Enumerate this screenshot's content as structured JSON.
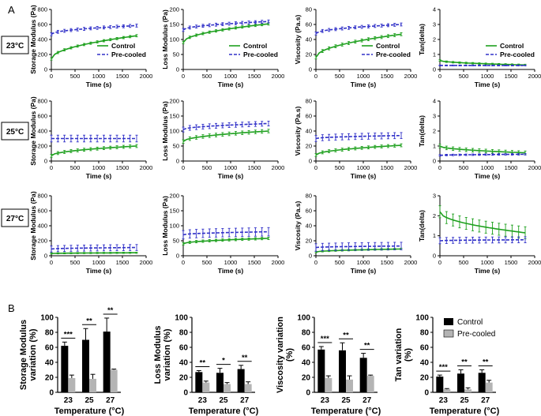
{
  "panel_labels": [
    "A",
    "B"
  ],
  "temperature_labels": [
    "23°C",
    "25°C",
    "27°C"
  ],
  "legend": {
    "control": "Control",
    "precooled": "Pre-cooled"
  },
  "colors": {
    "control": "#1ea01e",
    "precooled": "#3030c8",
    "bar_control": "#000000",
    "bar_precooled": "#b4b4b4"
  },
  "chart_data": [
    {
      "type": "line",
      "name": "storage-23",
      "row": 0,
      "col": 0,
      "ylabel": "Storage Modulus (Pa)",
      "xlabel": "Time (s)",
      "xlim": [
        0,
        2000
      ],
      "ylim": [
        0,
        800
      ],
      "xticks": [
        0,
        500,
        1000,
        1500,
        2000
      ],
      "yticks": [
        0,
        200,
        400,
        600,
        800
      ],
      "legend": true,
      "series": [
        {
          "name": "Control",
          "start": 140,
          "end": 450,
          "err": 15
        },
        {
          "name": "Pre-cooled",
          "start": 470,
          "end": 585,
          "err": 20
        }
      ]
    },
    {
      "type": "line",
      "name": "loss-23",
      "row": 0,
      "col": 1,
      "ylabel": "Loss Modulus (Pa)",
      "xlabel": "Time (s)",
      "xlim": [
        0,
        2000
      ],
      "ylim": [
        0,
        200
      ],
      "xticks": [
        0,
        500,
        1000,
        1500,
        2000
      ],
      "yticks": [
        0,
        50,
        100,
        150,
        200
      ],
      "legend": true,
      "series": [
        {
          "name": "Control",
          "start": 90,
          "end": 152,
          "err": 4
        },
        {
          "name": "Pre-cooled",
          "start": 132,
          "end": 160,
          "err": 5
        }
      ]
    },
    {
      "type": "line",
      "name": "viscosity-23",
      "row": 0,
      "col": 2,
      "ylabel": "Viscosity (Pa.s)",
      "xlabel": "Time (s)",
      "xlim": [
        0,
        2000
      ],
      "ylim": [
        0,
        80
      ],
      "xticks": [
        0,
        500,
        1000,
        1500,
        2000
      ],
      "yticks": [
        0,
        20,
        40,
        60,
        80
      ],
      "legend": true,
      "series": [
        {
          "name": "Control",
          "start": 16,
          "end": 47,
          "err": 2
        },
        {
          "name": "Pre-cooled",
          "start": 48,
          "end": 60,
          "err": 2
        }
      ]
    },
    {
      "type": "line",
      "name": "tan-23",
      "row": 0,
      "col": 3,
      "ylabel": "Tan(delta)",
      "xlabel": "Time (s)",
      "xlim": [
        0,
        2000
      ],
      "ylim": [
        0,
        4
      ],
      "xticks": [
        0,
        500,
        1000,
        1500,
        2000
      ],
      "yticks": [
        0,
        1,
        2,
        3,
        4
      ],
      "legend": true,
      "series": [
        {
          "name": "Control",
          "start": 0.6,
          "end": 0.3,
          "err": 0.05
        },
        {
          "name": "Pre-cooled",
          "start": 0.27,
          "end": 0.27,
          "err": 0.03
        }
      ]
    },
    {
      "type": "line",
      "name": "storage-25",
      "row": 1,
      "col": 0,
      "ylabel": "Storage Modulus (Pa)",
      "xlabel": "Time (s)",
      "xlim": [
        0,
        2000
      ],
      "ylim": [
        0,
        800
      ],
      "xticks": [
        0,
        500,
        1000,
        1500,
        2000
      ],
      "yticks": [
        0,
        200,
        400,
        600,
        800
      ],
      "legend": false,
      "series": [
        {
          "name": "Control",
          "start": 70,
          "end": 200,
          "err": 20
        },
        {
          "name": "Pre-cooled",
          "start": 300,
          "end": 300,
          "err": 45
        }
      ]
    },
    {
      "type": "line",
      "name": "loss-25",
      "row": 1,
      "col": 1,
      "ylabel": "Loss Modulus (Pa)",
      "xlabel": "Time (s)",
      "xlim": [
        0,
        2000
      ],
      "ylim": [
        0,
        200
      ],
      "xticks": [
        0,
        500,
        1000,
        1500,
        2000
      ],
      "yticks": [
        0,
        50,
        100,
        150,
        200
      ],
      "legend": false,
      "series": [
        {
          "name": "Control",
          "start": 65,
          "end": 100,
          "err": 6
        },
        {
          "name": "Pre-cooled",
          "start": 105,
          "end": 125,
          "err": 8
        }
      ]
    },
    {
      "type": "line",
      "name": "viscosity-25",
      "row": 1,
      "col": 2,
      "ylabel": "Viscosity (Pa.s)",
      "xlabel": "Time (s)",
      "xlim": [
        0,
        2000
      ],
      "ylim": [
        0,
        80
      ],
      "xticks": [
        0,
        500,
        1000,
        1500,
        2000
      ],
      "yticks": [
        0,
        20,
        40,
        60,
        80
      ],
      "legend": false,
      "series": [
        {
          "name": "Control",
          "start": 8,
          "end": 21,
          "err": 2
        },
        {
          "name": "Pre-cooled",
          "start": 30,
          "end": 34,
          "err": 4
        }
      ]
    },
    {
      "type": "line",
      "name": "tan-25",
      "row": 1,
      "col": 3,
      "ylabel": "Tan(delta)",
      "xlabel": "Time (s)",
      "xlim": [
        0,
        2000
      ],
      "ylim": [
        0,
        4
      ],
      "xticks": [
        0,
        500,
        1000,
        1500,
        2000
      ],
      "yticks": [
        0,
        1,
        2,
        3,
        4
      ],
      "legend": false,
      "series": [
        {
          "name": "Control",
          "start": 1.0,
          "end": 0.55,
          "err": 0.12
        },
        {
          "name": "Pre-cooled",
          "start": 0.38,
          "end": 0.45,
          "err": 0.05
        }
      ]
    },
    {
      "type": "line",
      "name": "storage-27",
      "row": 2,
      "col": 0,
      "ylabel": "Storage Modulus (Pa)",
      "xlabel": "Time (s)",
      "xlim": [
        0,
        2000
      ],
      "ylim": [
        0,
        800
      ],
      "xticks": [
        0,
        500,
        1000,
        1500,
        2000
      ],
      "yticks": [
        0,
        200,
        400,
        600,
        800
      ],
      "legend": false,
      "series": [
        {
          "name": "Control",
          "start": 30,
          "end": 40,
          "err": 8
        },
        {
          "name": "Pre-cooled",
          "start": 90,
          "end": 110,
          "err": 40
        }
      ]
    },
    {
      "type": "line",
      "name": "loss-27",
      "row": 2,
      "col": 1,
      "ylabel": "Loss Modulus (Pa)",
      "xlabel": "Time (s)",
      "xlim": [
        0,
        2000
      ],
      "ylim": [
        0,
        200
      ],
      "xticks": [
        0,
        500,
        1000,
        1500,
        2000
      ],
      "yticks": [
        0,
        50,
        100,
        150,
        200
      ],
      "legend": false,
      "series": [
        {
          "name": "Control",
          "start": 40,
          "end": 58,
          "err": 4
        },
        {
          "name": "Pre-cooled",
          "start": 70,
          "end": 80,
          "err": 14
        }
      ]
    },
    {
      "type": "line",
      "name": "viscosity-27",
      "row": 2,
      "col": 2,
      "ylabel": "Viscosity (Pa.s)",
      "xlabel": "Time (s)",
      "xlim": [
        0,
        2000
      ],
      "ylim": [
        0,
        80
      ],
      "xticks": [
        0,
        500,
        1000,
        1500,
        2000
      ],
      "yticks": [
        0,
        20,
        40,
        60,
        80
      ],
      "legend": false,
      "series": [
        {
          "name": "Control",
          "start": 5,
          "end": 9,
          "err": 1
        },
        {
          "name": "Pre-cooled",
          "start": 11,
          "end": 13,
          "err": 5
        }
      ]
    },
    {
      "type": "line",
      "name": "tan-27",
      "row": 2,
      "col": 3,
      "ylabel": "Tan(delta)",
      "xlabel": "Time (s)",
      "xlim": [
        0,
        2000
      ],
      "ylim": [
        0,
        3
      ],
      "xticks": [
        0,
        500,
        1000,
        1500,
        2000
      ],
      "yticks": [
        0,
        1,
        2,
        3
      ],
      "legend": false,
      "series": [
        {
          "name": "Control",
          "start": 2.2,
          "end": 1.15,
          "err": 0.3
        },
        {
          "name": "Pre-cooled",
          "start": 0.75,
          "end": 0.8,
          "err": 0.15
        }
      ]
    },
    {
      "type": "bar",
      "name": "storage-variation",
      "ylabel": "Storage Modulus variation (%)",
      "xlabel": "Temperature (°C)",
      "categories": [
        "23",
        "25",
        "27"
      ],
      "ylim": [
        0,
        100
      ],
      "yticks": [
        0,
        20,
        40,
        60,
        80,
        100
      ],
      "legend": false,
      "series": [
        {
          "name": "Control",
          "values": [
            62,
            70,
            81
          ],
          "err": [
            5,
            15,
            18
          ]
        },
        {
          "name": "Pre-cooled",
          "values": [
            19,
            18,
            30
          ],
          "err": [
            4,
            6,
            1
          ]
        }
      ],
      "significance": [
        "***",
        "**",
        "**"
      ]
    },
    {
      "type": "bar",
      "name": "loss-variation",
      "ylabel": "Loss Modulus variation (%)",
      "xlabel": "Temperature (°C)",
      "categories": [
        "23",
        "25",
        "27"
      ],
      "ylim": [
        0,
        100
      ],
      "yticks": [
        0,
        20,
        40,
        60,
        80,
        100
      ],
      "legend": false,
      "series": [
        {
          "name": "Control",
          "values": [
            27,
            26,
            31
          ],
          "err": [
            2,
            6,
            5
          ]
        },
        {
          "name": "Pre-cooled",
          "values": [
            13,
            11,
            11
          ],
          "err": [
            2,
            2,
            3
          ]
        }
      ],
      "significance": [
        "**",
        "*",
        "**"
      ]
    },
    {
      "type": "bar",
      "name": "viscosity-variation",
      "ylabel": "Viscosity variation (%)",
      "xlabel": "Temperature (°C)",
      "categories": [
        "23",
        "25",
        "27"
      ],
      "ylim": [
        0,
        100
      ],
      "yticks": [
        0,
        20,
        40,
        60,
        80,
        100
      ],
      "legend": false,
      "series": [
        {
          "name": "Control",
          "values": [
            57,
            56,
            46
          ],
          "err": [
            4,
            10,
            6
          ]
        },
        {
          "name": "Pre-cooled",
          "values": [
            19,
            17,
            22
          ],
          "err": [
            3,
            5,
            1
          ]
        }
      ],
      "significance": [
        "***",
        "**",
        "**"
      ]
    },
    {
      "type": "bar",
      "name": "tan-variation",
      "ylabel": "Tan variation (%)",
      "xlabel": "Temperature (°C)",
      "categories": [
        "23",
        "25",
        "27"
      ],
      "ylim": [
        0,
        100
      ],
      "yticks": [
        0,
        20,
        40,
        60,
        80,
        100
      ],
      "legend": true,
      "series": [
        {
          "name": "Control",
          "values": [
            21,
            25,
            26
          ],
          "err": [
            2,
            5,
            4
          ]
        },
        {
          "name": "Pre-cooled",
          "values": [
            4,
            4,
            13
          ],
          "err": [
            1,
            2,
            3
          ]
        }
      ],
      "significance": [
        "***",
        "**",
        "**"
      ]
    }
  ]
}
